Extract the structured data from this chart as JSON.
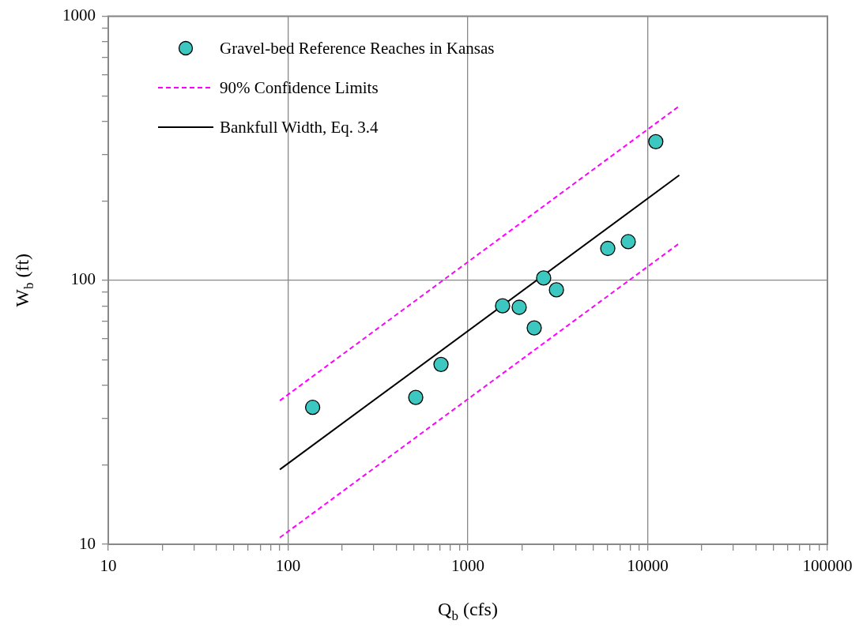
{
  "chart_data": {
    "type": "scatter",
    "xlabel": "Q$_{b}$ (cfs)",
    "ylabel": "W$_{b}$ (ft)",
    "log": "xy",
    "grid": true,
    "legend": "top left",
    "xlim": [
      10,
      100000
    ],
    "ylim": [
      10,
      1000
    ],
    "xticks": [
      10,
      {
        "value": 20,
        "label": null
      },
      {
        "value": 30,
        "label": null
      },
      {
        "value": 40,
        "label": null
      },
      {
        "value": 50,
        "label": null
      },
      {
        "value": 60,
        "label": null
      },
      {
        "value": 70,
        "label": null
      },
      {
        "value": 80,
        "label": null
      },
      {
        "value": 90,
        "label": null
      },
      100,
      {
        "value": 200,
        "label": null
      },
      {
        "value": 300,
        "label": null
      },
      {
        "value": 400,
        "label": null
      },
      {
        "value": 500,
        "label": null
      },
      {
        "value": 600,
        "label": null
      },
      {
        "value": 700,
        "label": null
      },
      {
        "value": 800,
        "label": null
      },
      {
        "value": 900,
        "label": null
      },
      1000,
      {
        "value": 2000,
        "label": null
      },
      {
        "value": 3000,
        "label": null
      },
      {
        "value": 4000,
        "label": null
      },
      {
        "value": 5000,
        "label": null
      },
      {
        "value": 6000,
        "label": null
      },
      {
        "value": 7000,
        "label": null
      },
      {
        "value": 8000,
        "label": null
      },
      {
        "value": 9000,
        "label": null
      },
      10000,
      {
        "value": 20000,
        "label": null
      },
      {
        "value": 30000,
        "label": null
      },
      {
        "value": 40000,
        "label": null
      },
      {
        "value": 50000,
        "label": null
      },
      {
        "value": 60000,
        "label": null
      },
      {
        "value": 70000,
        "label": null
      },
      {
        "value": 80000,
        "label": null
      },
      {
        "value": 90000,
        "label": null
      },
      100000
    ],
    "yticks": [
      10,
      {
        "value": 20,
        "label": null
      },
      {
        "value": 30,
        "label": null
      },
      {
        "value": 40,
        "label": null
      },
      {
        "value": 50,
        "label": null
      },
      {
        "value": 60,
        "label": null
      },
      {
        "value": 70,
        "label": null
      },
      {
        "value": 80,
        "label": null
      },
      {
        "value": 90,
        "label": null
      },
      100,
      {
        "value": 200,
        "label": null
      },
      {
        "value": 300,
        "label": null
      },
      {
        "value": 400,
        "label": null
      },
      {
        "value": 500,
        "label": null
      },
      {
        "value": 600,
        "label": null
      },
      {
        "value": 700,
        "label": null
      },
      {
        "value": 800,
        "label": null
      },
      {
        "value": 900,
        "label": null
      },
      1000
    ],
    "series": [
      {
        "type": "scatter",
        "name": "Gravel-bed Reference Reaches in Kansas",
        "color": "#3cc8c0",
        "marker": "circle",
        "x": [
          137,
          513,
          709,
          1560,
          1930,
          2340,
          2640,
          3110,
          6000,
          7800,
          11100
        ],
        "values": [
          33,
          36,
          48,
          80,
          79,
          66,
          102,
          92,
          132,
          140,
          335
        ]
      },
      {
        "type": "line",
        "name": "90% Confidence Limits",
        "color": "#ff00ff",
        "line_style": "dashed",
        "marker": "none",
        "x": [
          90,
          15000
        ],
        "values": [
          35,
          457
        ]
      },
      {
        "type": "line",
        "color": "#ff00ff",
        "line_style": "dashed",
        "marker": "none",
        "x": [
          90,
          15000
        ],
        "values": [
          10.6,
          138
        ]
      },
      {
        "type": "line",
        "name": "Bankfull Width, Eq. 3.4",
        "color": "#000000",
        "line_style": "solid",
        "marker": "none",
        "x": [
          90,
          15000
        ],
        "values": [
          19.2,
          250
        ]
      }
    ]
  }
}
